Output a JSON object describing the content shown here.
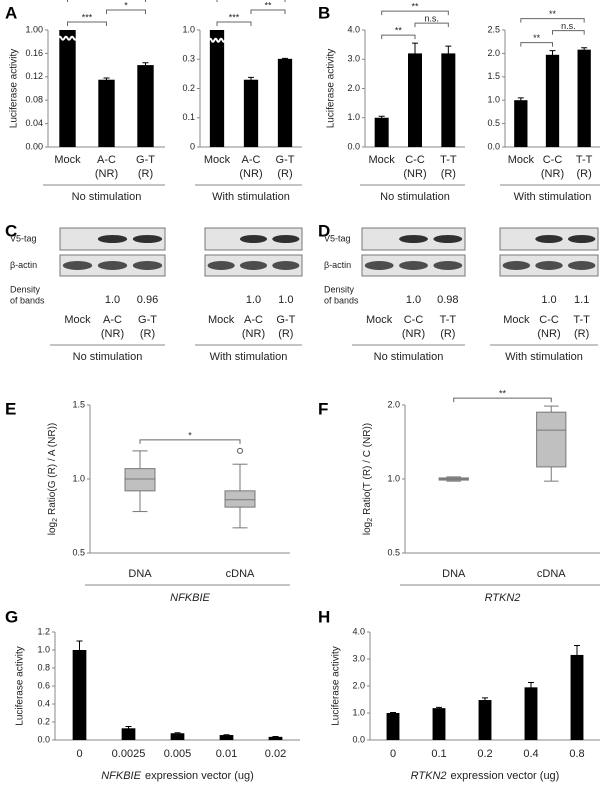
{
  "chart_data": [
    {
      "panel": "A",
      "type": "bar",
      "ylabel": "Luciferase activity",
      "xlabel": "No stimulation",
      "categories": [
        [
          "Mock"
        ],
        [
          "A-C",
          "(NR)"
        ],
        [
          "G-T",
          "(R)"
        ]
      ],
      "values": [
        1.0,
        0.115,
        0.14
      ],
      "errors": [
        null,
        0.003,
        0.004
      ],
      "color": "#000000",
      "axis_break": true,
      "yticks": [
        {
          "value": 0,
          "label": "0.00"
        },
        0.04,
        0.08,
        0.12,
        0.16,
        {
          "value": 1,
          "label": "1.00"
        }
      ],
      "brackets": [
        {
          "label": "***",
          "from": "Mock",
          "to": "G-T"
        },
        {
          "label": "***",
          "from": "Mock",
          "to": "A-C"
        },
        {
          "label": "*",
          "from": "A-C",
          "to": "G-T"
        }
      ]
    },
    {
      "type": "bar",
      "xlabel": "With stimulation",
      "categories": [
        [
          "Mock"
        ],
        [
          "A-C",
          "(NR)"
        ],
        [
          "G-T",
          "(R)"
        ]
      ],
      "values": [
        1.0,
        0.23,
        0.31
      ],
      "errors": [
        null,
        0.008,
        0.01
      ],
      "color": "#000000",
      "axis_break": true,
      "yticks": [
        0,
        0.1,
        0.2,
        0.3,
        {
          "value": 1,
          "label": "1.0"
        }
      ],
      "brackets": [
        {
          "label": "***",
          "from": "Mock",
          "to": "G-T"
        },
        {
          "label": "***",
          "from": "Mock",
          "to": "A-C"
        },
        {
          "label": "**",
          "from": "A-C",
          "to": "G-T"
        }
      ]
    },
    {
      "panel": "B",
      "type": "bar",
      "ylabel": "Luciferase activity",
      "xlabel": "No stimulation",
      "categories": [
        [
          "Mock"
        ],
        [
          "C-C",
          "(NR)"
        ],
        [
          "T-T",
          "(R)"
        ]
      ],
      "values": [
        1.0,
        3.2,
        3.2
      ],
      "errors": [
        0.05,
        0.35,
        0.25
      ],
      "color": "#000000",
      "ylim": [
        0,
        4
      ],
      "yticks": [
        {
          "value": 0,
          "label": "0.0"
        },
        {
          "value": 1,
          "label": "1.0"
        },
        {
          "value": 2,
          "label": "2.0"
        },
        {
          "value": 3,
          "label": "3.0"
        },
        {
          "value": 4,
          "label": "4.0"
        }
      ],
      "brackets": [
        {
          "label": "**",
          "from": "Mock",
          "to": "T-T"
        },
        {
          "label": "**",
          "from": "Mock",
          "to": "C-C"
        },
        {
          "label": "n.s.",
          "from": "C-C",
          "to": "T-T"
        }
      ]
    },
    {
      "type": "bar",
      "xlabel": "With stimulation",
      "categories": [
        [
          "Mock"
        ],
        [
          "C-C",
          "(NR)"
        ],
        [
          "T-T",
          "(R)"
        ]
      ],
      "values": [
        1.0,
        1.97,
        2.08
      ],
      "errors": [
        0.05,
        0.09,
        0.04
      ],
      "color": "#000000",
      "ylim": [
        0,
        2.5
      ],
      "yticks": [
        {
          "value": 0,
          "label": "0.0"
        },
        0.5,
        {
          "value": 1,
          "label": "1.0"
        },
        1.5,
        {
          "value": 2,
          "label": "2.0"
        },
        2.5
      ],
      "brackets": [
        {
          "label": "**",
          "from": "Mock",
          "to": "T-T"
        },
        {
          "label": "**",
          "from": "Mock",
          "to": "C-C"
        },
        {
          "label": "n.s.",
          "from": "C-C",
          "to": "T-T"
        }
      ]
    },
    {
      "panel": "E",
      "type": "box",
      "ylabel": {
        "main": "log",
        "sub": "2",
        "rest": "Ratio(G (R) / A (NR))"
      },
      "xlabel": [
        {
          "text": "NFKBIE",
          "italic": true
        }
      ],
      "categories": [
        "DNA",
        "cDNA"
      ],
      "color": "#c0c0c0",
      "boxes": [
        {
          "low": 0.78,
          "q1": 0.92,
          "median": 1.0,
          "q3": 1.07,
          "high": 1.19,
          "outliers": []
        },
        {
          "low": 0.67,
          "q1": 0.81,
          "median": 0.86,
          "q3": 0.92,
          "high": 1.1,
          "outliers": [
            1.19
          ]
        }
      ],
      "ylim": [
        0.5,
        1.5
      ],
      "yticks": [
        0.5,
        {
          "value": 1,
          "label": "1.0"
        },
        1.5
      ],
      "brackets": [
        {
          "label": "*",
          "from": "DNA",
          "to": "cDNA"
        }
      ]
    },
    {
      "panel": "F",
      "type": "box",
      "ylabel": {
        "main": "log",
        "sub": "2",
        "rest": "Ratio(T (R) / C (NR))"
      },
      "xlabel": [
        {
          "text": "RTKN2",
          "italic": true
        }
      ],
      "categories": [
        "DNA",
        "cDNA"
      ],
      "color": "#c0c0c0",
      "log": true,
      "boxes": [
        {
          "low": 0.98,
          "q1": 0.99,
          "median": 1.0,
          "q3": 1.01,
          "high": 1.02,
          "outliers": []
        },
        {
          "low": 0.98,
          "q1": 1.12,
          "median": 1.58,
          "q3": 1.87,
          "high": 1.98,
          "outliers": []
        }
      ],
      "ylim": [
        0.5,
        2
      ],
      "yticks": [
        0.5,
        {
          "value": 1,
          "label": "1.0"
        },
        {
          "value": 2,
          "label": "2.0"
        }
      ],
      "brackets": [
        {
          "label": "**",
          "from": "DNA",
          "to": "cDNA"
        }
      ]
    },
    {
      "panel": "G",
      "type": "bar",
      "ylabel": "Luciferase activity",
      "xlabel": [
        {
          "text": "NFKBIE",
          "italic": true
        },
        {
          "text": "expression vector (ug)"
        }
      ],
      "categories": [
        [
          "0"
        ],
        [
          "0.0025"
        ],
        [
          "0.005"
        ],
        [
          "0.01"
        ],
        [
          "0.02"
        ]
      ],
      "values": [
        1.0,
        0.13,
        0.075,
        0.055,
        0.035
      ],
      "errors": [
        0.1,
        0.02,
        0.005,
        0.004,
        0.004
      ],
      "color": "#000000",
      "ylim": [
        0,
        1.2
      ],
      "yticks": [
        {
          "value": 0,
          "label": "0.0"
        },
        0.2,
        0.4,
        0.6,
        0.8,
        {
          "value": 1,
          "label": "1.0"
        },
        1.2
      ]
    },
    {
      "panel": "H",
      "type": "bar",
      "ylabel": "Luciferase activity",
      "xlabel": [
        {
          "text": "RTKN2",
          "italic": true
        },
        {
          "text": "expression vector (ug)"
        }
      ],
      "categories": [
        [
          "0"
        ],
        [
          "0.1"
        ],
        [
          "0.2"
        ],
        [
          "0.4"
        ],
        [
          "0.8"
        ]
      ],
      "values": [
        1.0,
        1.18,
        1.48,
        1.95,
        3.15
      ],
      "errors": [
        0.02,
        0.03,
        0.08,
        0.18,
        0.35
      ],
      "color": "#000000",
      "ylim": [
        0,
        4
      ],
      "yticks": [
        {
          "value": 0,
          "label": "0.0"
        },
        {
          "value": 1,
          "label": "1.0"
        },
        {
          "value": 2,
          "label": "2.0"
        },
        {
          "value": 3,
          "label": "3.0"
        },
        {
          "value": 4,
          "label": "4.0"
        }
      ]
    }
  ],
  "blots": [
    {
      "panel": "C",
      "row_labels": [
        "V5-tag",
        "β-actin"
      ],
      "density_label": [
        "Density",
        "of bands"
      ],
      "groups": [
        {
          "lanes": [
            [
              "Mock"
            ],
            [
              "A-C",
              "(NR)"
            ],
            [
              "G-T",
              "(R)"
            ]
          ],
          "densities": [
            "1.0",
            "0.96"
          ],
          "condition": "No stimulation"
        },
        {
          "lanes": [
            [
              "Mock"
            ],
            [
              "A-C",
              "(NR)"
            ],
            [
              "G-T",
              "(R)"
            ]
          ],
          "densities": [
            "1.0",
            "1.0"
          ],
          "condition": "With stimulation"
        }
      ]
    },
    {
      "panel": "D",
      "row_labels": [
        "V5-tag",
        "β-actin"
      ],
      "density_label": [
        "Density",
        "of bands"
      ],
      "groups": [
        {
          "lanes": [
            [
              "Mock"
            ],
            [
              "C-C",
              "(NR)"
            ],
            [
              "T-T",
              "(R)"
            ]
          ],
          "densities": [
            "1.0",
            "0.98"
          ],
          "condition": "No stimulation"
        },
        {
          "lanes": [
            [
              "Mock"
            ],
            [
              "C-C",
              "(NR)"
            ],
            [
              "T-T",
              "(R)"
            ]
          ],
          "densities": [
            "1.0",
            "1.1"
          ],
          "condition": "With stimulation"
        }
      ]
    }
  ]
}
